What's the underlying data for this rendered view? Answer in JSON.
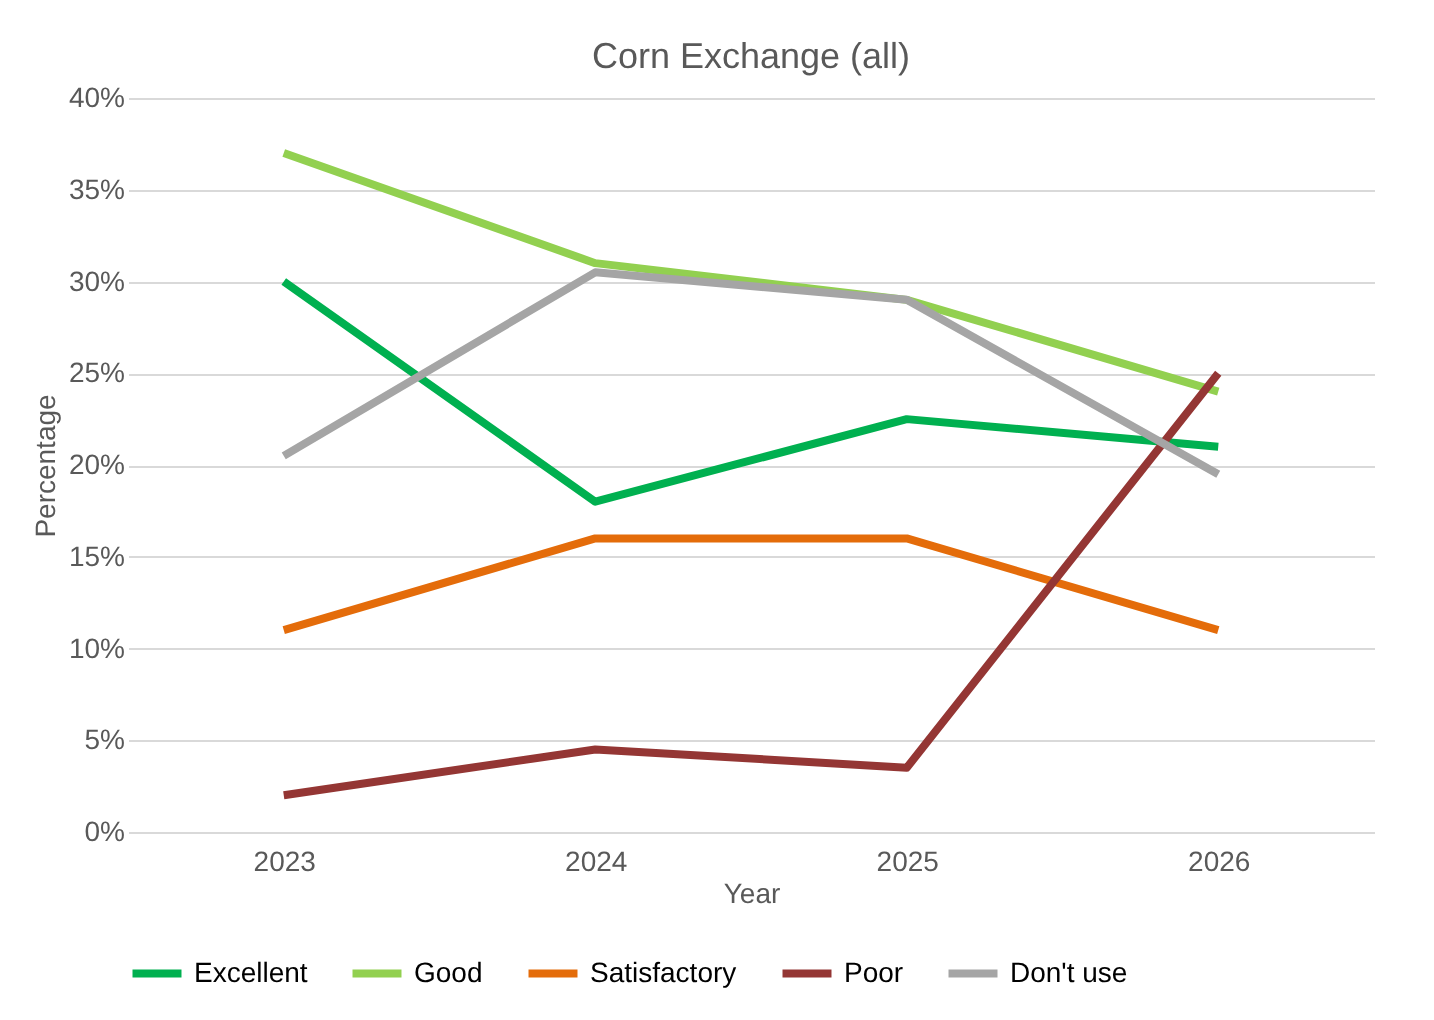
{
  "chart_data": {
    "type": "line",
    "title": "Corn Exchange (all)",
    "xlabel": "Year",
    "ylabel": "Percentage",
    "categories": [
      "2023",
      "2024",
      "2025",
      "2026"
    ],
    "series": [
      {
        "name": "Excellent",
        "color": "#00b050",
        "values": [
          30,
          18,
          22.5,
          21
        ]
      },
      {
        "name": "Good",
        "color": "#92d050",
        "values": [
          37,
          31,
          29,
          24
        ]
      },
      {
        "name": "Satisfactory",
        "color": "#e46c0a",
        "values": [
          11,
          16,
          16,
          11
        ]
      },
      {
        "name": "Poor",
        "color": "#943634",
        "values": [
          2,
          4.5,
          3.5,
          25
        ]
      },
      {
        "name": "Don't use",
        "color": "#a5a5a5",
        "values": [
          20.5,
          30.5,
          29,
          19.5
        ]
      }
    ],
    "ylim": [
      0,
      40
    ],
    "yticks": [
      {
        "value": 0,
        "label": "0%"
      },
      {
        "value": 5,
        "label": "5%"
      },
      {
        "value": 10,
        "label": "10%"
      },
      {
        "value": 15,
        "label": "15%"
      },
      {
        "value": 20,
        "label": "20%"
      },
      {
        "value": 25,
        "label": "25%"
      },
      {
        "value": 30,
        "label": "30%"
      },
      {
        "value": 35,
        "label": "35%"
      },
      {
        "value": 40,
        "label": "40%"
      }
    ],
    "grid": "y",
    "legend": "bottom",
    "marker": "none",
    "line_style": "solid"
  }
}
